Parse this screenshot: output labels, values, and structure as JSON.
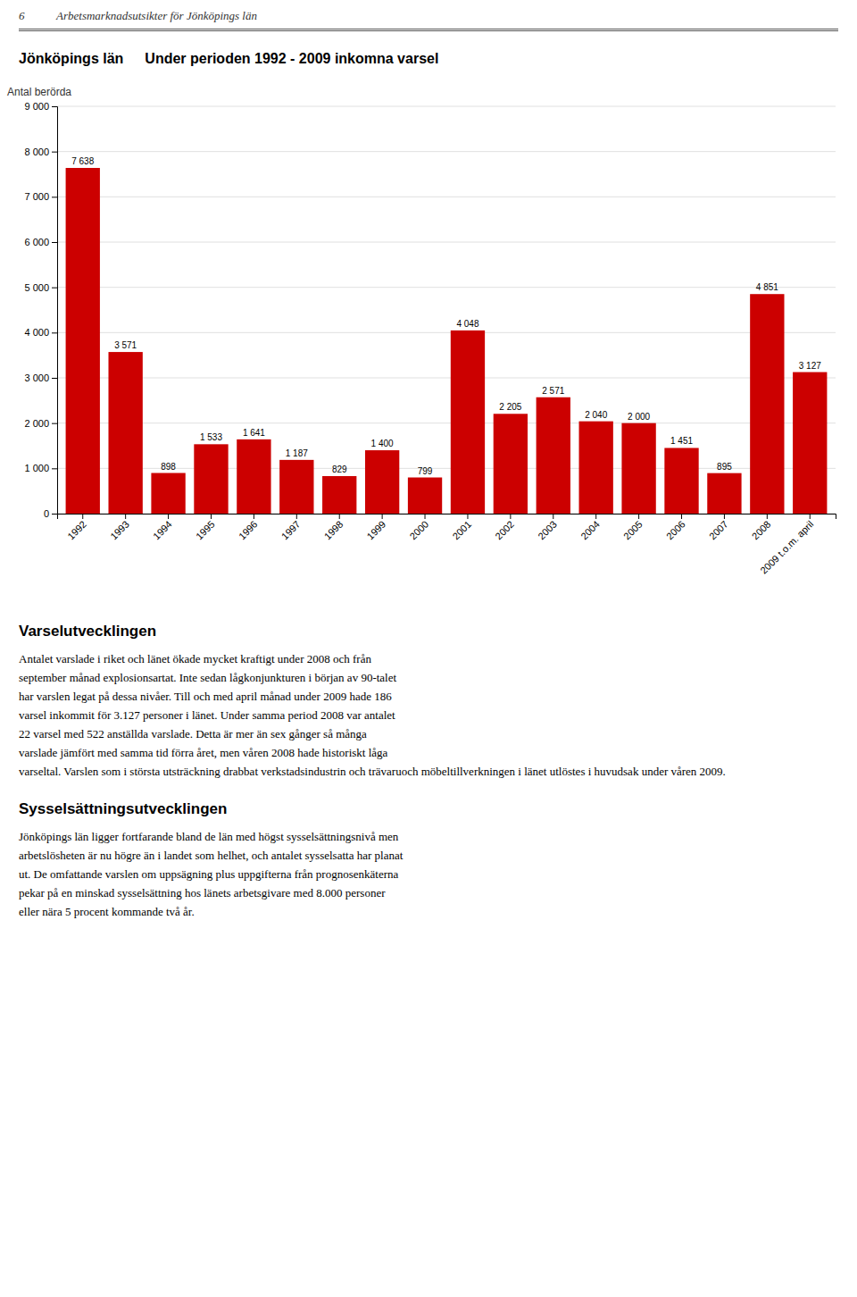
{
  "page_header_num": "6",
  "page_header_text": "Arbetsmarknadsutsikter för Jönköpings län",
  "chart_data": {
    "type": "bar",
    "title": "Jönköpings län",
    "subtitle": "Under perioden 1992 - 2009  inkomna varsel",
    "y_label": "Antal berörda",
    "categories": [
      "1992",
      "1993",
      "1994",
      "1995",
      "1996",
      "1997",
      "1998",
      "1999",
      "2000",
      "2001",
      "2002",
      "2003",
      "2004",
      "2005",
      "2006",
      "2007",
      "2008",
      "2009 t.o.m. april"
    ],
    "values": [
      7638,
      3571,
      898,
      1533,
      1641,
      1187,
      829,
      1400,
      799,
      4048,
      2205,
      2571,
      2040,
      2000,
      1451,
      895,
      4851,
      3127
    ],
    "value_labels": [
      "7 638",
      "3 571",
      "898",
      "1 533",
      "1 641",
      "1 187",
      "829",
      "1 400",
      "799",
      "4 048",
      "2 205",
      "2 571",
      "2 040",
      "2 000",
      "1 451",
      "895",
      "4 851",
      "3 127"
    ],
    "data_labels": true,
    "color": "#CC0000",
    "ylim": [
      0,
      9000
    ],
    "yticks": [
      0,
      {
        "value": 1000,
        "label": "1 000"
      },
      {
        "value": 2000,
        "label": "2 000"
      },
      {
        "value": 3000,
        "label": "3 000"
      },
      {
        "value": 4000,
        "label": "4 000"
      },
      {
        "value": 5000,
        "label": "5 000"
      },
      {
        "value": 6000,
        "label": "6 000"
      },
      {
        "value": 7000,
        "label": "7 000"
      },
      {
        "value": 8000,
        "label": "8 000"
      },
      {
        "value": 9000,
        "label": "9 000"
      }
    ],
    "grid": true
  },
  "sections": [
    {
      "title": "Varselutvecklingen",
      "lines": [
        "Antalet varslade i riket och länet ökade mycket kraftigt under 2008 och från",
        "september månad explosionsartat. Inte sedan lågkonjunkturen i början av 90-talet",
        "har varslen legat på dessa nivåer. Till och med april månad under 2009 hade 186",
        "varsel inkommit för 3.127 personer i länet. Under samma period 2008 var antalet",
        "22 varsel med 522 anställda varslade. Detta är mer än sex gånger så många",
        "varslade jämfört med samma tid förra året, men våren 2008 hade historiskt låga",
        "varseltal. Varslen som i största utsträckning drabbat verkstadsindustrin och trävaruoch möbeltillverkningen i länet utlöstes i huvudsak under våren 2009."
      ]
    },
    {
      "title": "Sysselsättningsutvecklingen",
      "lines": [
        "Jönköpings län ligger fortfarande bland de län med högst sysselsättningsnivå men",
        "arbetslösheten är nu högre än i landet som helhet, och antalet sysselsatta har planat",
        "ut. De omfattande varslen om uppsägning plus uppgifterna från prognosenkäterna",
        "pekar på en minskad sysselsättning hos länets arbetsgivare med 8.000 personer",
        "eller nära 5 procent kommande två år."
      ]
    }
  ]
}
